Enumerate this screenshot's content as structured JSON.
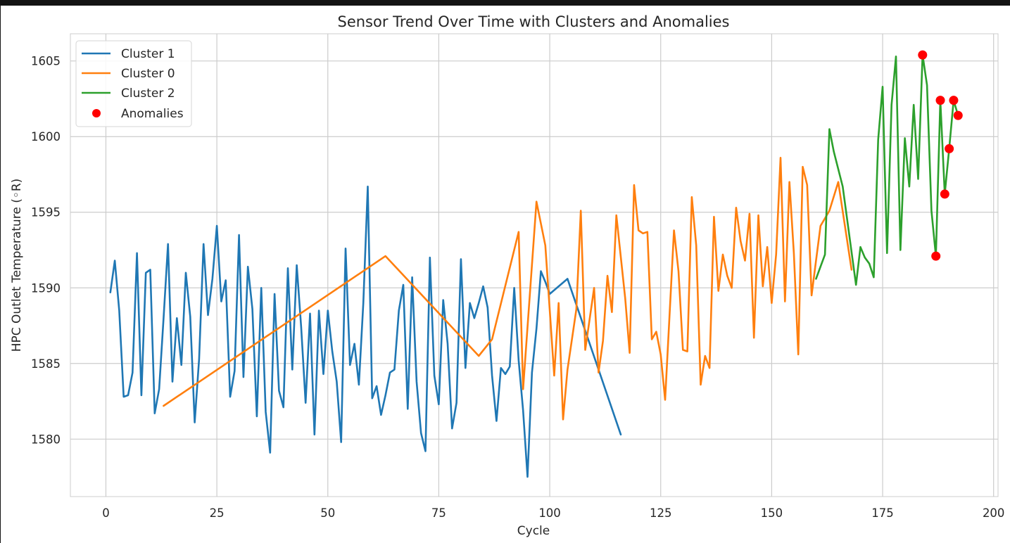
{
  "chart_data": {
    "type": "line",
    "title": "Sensor Trend Over Time with Clusters and Anomalies",
    "xlabel": "Cycle",
    "ylabel": "HPC Outlet Temperature (◦R)",
    "xlim": [
      -8,
      201
    ],
    "ylim": [
      1576.2,
      1606.8
    ],
    "xticks": [
      0,
      25,
      50,
      75,
      100,
      125,
      150,
      175,
      200
    ],
    "yticks": [
      1580,
      1585,
      1590,
      1595,
      1600,
      1605
    ],
    "grid": true,
    "legend_position": "upper-left",
    "series": [
      {
        "name": "Cluster 1",
        "color": "#1f77b4",
        "x": [
          1,
          2,
          3,
          4,
          5,
          6,
          7,
          8,
          9,
          10,
          11,
          12,
          13,
          14,
          15,
          16,
          17,
          18,
          19,
          20,
          21,
          22,
          23,
          24,
          25,
          26,
          27,
          28,
          29,
          30,
          31,
          32,
          33,
          34,
          35,
          36,
          37,
          38,
          39,
          40,
          41,
          42,
          43,
          44,
          45,
          46,
          47,
          48,
          49,
          50,
          51,
          52,
          53,
          54,
          55,
          56,
          57,
          58,
          59,
          60,
          61,
          62,
          63,
          64,
          65,
          66,
          67,
          68,
          69,
          70,
          71,
          72,
          73,
          74,
          75,
          76,
          77,
          78,
          79,
          80,
          81,
          82,
          83,
          84,
          85,
          86,
          87,
          88,
          89,
          90,
          91,
          92,
          93,
          94,
          95,
          96,
          97,
          98,
          99,
          100,
          104,
          116
        ],
        "y": [
          1589.7,
          1591.8,
          1588.5,
          1582.8,
          1582.9,
          1584.4,
          1592.3,
          1582.9,
          1591.0,
          1591.2,
          1581.7,
          1583.3,
          1588.0,
          1592.9,
          1583.8,
          1588.0,
          1584.9,
          1591.0,
          1588.1,
          1581.1,
          1585.3,
          1592.9,
          1588.2,
          1590.6,
          1594.1,
          1589.1,
          1590.5,
          1582.8,
          1584.5,
          1593.5,
          1584.1,
          1591.4,
          1588.6,
          1581.5,
          1590.0,
          1581.8,
          1579.1,
          1589.6,
          1583.2,
          1582.1,
          1591.3,
          1584.6,
          1591.5,
          1587.4,
          1582.4,
          1588.3,
          1580.3,
          1588.5,
          1584.3,
          1588.5,
          1585.8,
          1583.8,
          1579.8,
          1592.6,
          1584.9,
          1586.3,
          1583.6,
          1589.0,
          1596.7,
          1582.7,
          1583.5,
          1581.6,
          1582.9,
          1584.4,
          1584.6,
          1588.5,
          1590.2,
          1582.0,
          1590.7,
          1583.8,
          1580.4,
          1579.2,
          1592.0,
          1584.2,
          1582.3,
          1589.2,
          1586.3,
          1580.7,
          1582.4,
          1591.9,
          1584.7,
          1589.0,
          1588.0,
          1589.0,
          1590.1,
          1588.7,
          1584.2,
          1581.2,
          1584.7,
          1584.3,
          1584.8,
          1590.0,
          1585.2,
          1581.9,
          1577.5,
          1584.4,
          1587.3,
          1591.1,
          1590.4,
          1589.6,
          1590.6,
          1580.3
        ]
      },
      {
        "name": "Cluster 0",
        "color": "#ff7f0e",
        "x": [
          13,
          63,
          84,
          87,
          93,
          94,
          97,
          99,
          101,
          102,
          103,
          104,
          106,
          107,
          108,
          110,
          111,
          112,
          113,
          114,
          115,
          117,
          118,
          119,
          120,
          121,
          122,
          123,
          124,
          125,
          126,
          128,
          129,
          130,
          131,
          132,
          133,
          134,
          135,
          136,
          137,
          138,
          139,
          140,
          141,
          142,
          143,
          144,
          145,
          146,
          147,
          148,
          149,
          150,
          151,
          152,
          153,
          154,
          155,
          156,
          157,
          158,
          159,
          160,
          161,
          163,
          165,
          168
        ],
        "y": [
          1582.2,
          1592.1,
          1585.5,
          1586.6,
          1593.7,
          1583.3,
          1595.7,
          1592.8,
          1584.2,
          1589.0,
          1581.3,
          1584.6,
          1588.6,
          1595.1,
          1585.9,
          1590.0,
          1584.4,
          1586.5,
          1590.8,
          1588.4,
          1594.8,
          1589.3,
          1585.7,
          1596.8,
          1593.8,
          1593.6,
          1593.7,
          1586.6,
          1587.1,
          1585.6,
          1582.6,
          1593.8,
          1591.1,
          1585.9,
          1585.8,
          1596.0,
          1592.8,
          1583.6,
          1585.5,
          1584.7,
          1594.7,
          1589.8,
          1592.2,
          1590.8,
          1590.0,
          1595.3,
          1593.1,
          1591.8,
          1594.9,
          1586.7,
          1594.8,
          1590.1,
          1592.7,
          1589.0,
          1592.2,
          1598.6,
          1589.1,
          1597.0,
          1592.3,
          1585.6,
          1598.0,
          1596.8,
          1589.5,
          1591.8,
          1594.1,
          1595.1,
          1597.0,
          1591.2
        ]
      },
      {
        "name": "Cluster 2",
        "color": "#2ca02c",
        "x": [
          160,
          162,
          163,
          164,
          166,
          169,
          170,
          171,
          172,
          173,
          174,
          175,
          176,
          177,
          178,
          179,
          180,
          181,
          182,
          183,
          184,
          185,
          186,
          187,
          188,
          189,
          190,
          191,
          192
        ],
        "y": [
          1590.6,
          1592.2,
          1600.5,
          1599.0,
          1596.7,
          1590.2,
          1592.7,
          1592.0,
          1591.6,
          1590.7,
          1599.8,
          1603.3,
          1592.3,
          1602.1,
          1605.3,
          1592.5,
          1599.9,
          1596.7,
          1602.1,
          1597.2,
          1605.4,
          1603.4,
          1595.1,
          1592.1,
          1602.4,
          1596.2,
          1599.2,
          1602.4,
          1601.4
        ]
      }
    ],
    "anomalies": {
      "name": "Anomalies",
      "color": "#ff0000",
      "x": [
        184,
        187,
        188,
        189,
        190,
        191,
        192
      ],
      "y": [
        1605.4,
        1592.1,
        1602.4,
        1596.2,
        1599.2,
        1602.4,
        1601.4
      ]
    }
  }
}
